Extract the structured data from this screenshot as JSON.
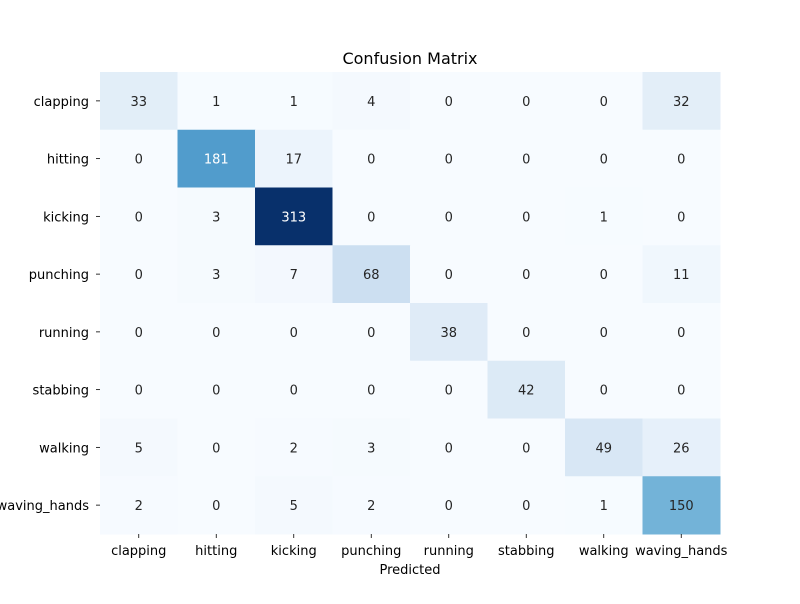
{
  "chart_data": {
    "type": "heatmap",
    "title": "Confusion Matrix",
    "xlabel": "Predicted",
    "ylabel": "",
    "x_categories": [
      "clapping",
      "hitting",
      "kicking",
      "punching",
      "running",
      "stabbing",
      "walking",
      "waving_hands"
    ],
    "y_categories": [
      "clapping",
      "hitting",
      "kicking",
      "punching",
      "running",
      "stabbing",
      "walking",
      "waving_hands"
    ],
    "values": [
      [
        33,
        1,
        1,
        4,
        0,
        0,
        0,
        32
      ],
      [
        0,
        181,
        17,
        0,
        0,
        0,
        0,
        0
      ],
      [
        0,
        3,
        313,
        0,
        0,
        0,
        1,
        0
      ],
      [
        0,
        3,
        7,
        68,
        0,
        0,
        0,
        11
      ],
      [
        0,
        0,
        0,
        0,
        38,
        0,
        0,
        0
      ],
      [
        0,
        0,
        0,
        0,
        0,
        42,
        0,
        0
      ],
      [
        5,
        0,
        2,
        3,
        0,
        0,
        49,
        26
      ],
      [
        2,
        0,
        5,
        2,
        0,
        0,
        1,
        150
      ]
    ],
    "colormap": "Blues",
    "vmin": 0,
    "vmax": 313,
    "colorbar": false,
    "annotations": true,
    "grid": false
  }
}
